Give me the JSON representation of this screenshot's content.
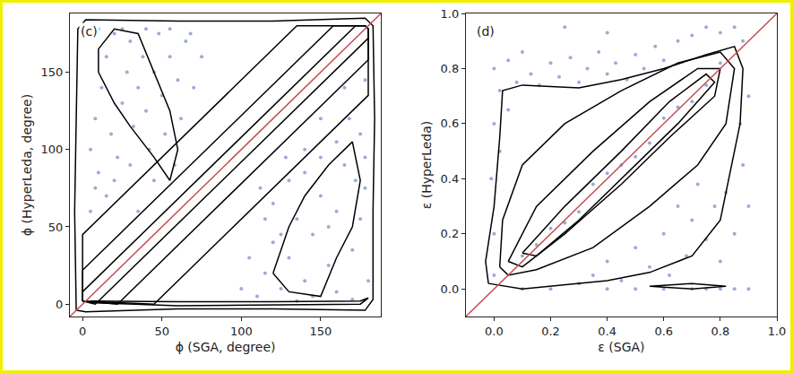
{
  "chart_data": [
    {
      "type": "scatter",
      "annotation": "(c)",
      "x_label": "ϕ (SGA, degree)",
      "y_label": "ϕ (HyperLeda, degree)",
      "xlim": [
        -8,
        188
      ],
      "ylim": [
        -8,
        188
      ],
      "xticks": [
        0,
        50,
        100,
        150
      ],
      "yticks": [
        0,
        50,
        100,
        150
      ],
      "grid": false,
      "series": [
        {
          "type": "scatter",
          "color": "#7890c8",
          "marker": "circle",
          "x": [
            5,
            8,
            10,
            12,
            15,
            18,
            20,
            22,
            25,
            28,
            30,
            32,
            35,
            38,
            40,
            42,
            45,
            48,
            50,
            52,
            55,
            58,
            60,
            62,
            65,
            3,
            10,
            25,
            40,
            55,
            5,
            8,
            15,
            20,
            30,
            70,
            75,
            68,
            45,
            35,
            110,
            115,
            120,
            125,
            130,
            135,
            140,
            145,
            150,
            155,
            160,
            165,
            170,
            175,
            178,
            180,
            120,
            130,
            140,
            150,
            160,
            168,
            175,
            178,
            145,
            160,
            100,
            105,
            115,
            125,
            135,
            170,
            150,
            165,
            178,
            140,
            155,
            112,
            128,
            172
          ],
          "y": [
            100,
            120,
            85,
            140,
            160,
            110,
            175,
            95,
            130,
            150,
            170,
            115,
            140,
            160,
            125,
            100,
            150,
            175,
            135,
            110,
            160,
            90,
            145,
            120,
            170,
            178,
            178,
            178,
            178,
            178,
            60,
            75,
            70,
            80,
            90,
            140,
            160,
            175,
            80,
            60,
            5,
            20,
            40,
            10,
            30,
            55,
            15,
            45,
            70,
            25,
            60,
            90,
            35,
            110,
            75,
            15,
            65,
            80,
            100,
            95,
            105,
            120,
            55,
            95,
            5,
            8,
            10,
            30,
            55,
            45,
            2,
            3,
            120,
            140,
            145,
            85,
            50,
            75,
            95,
            80
          ]
        },
        {
          "type": "line",
          "color": "#000000",
          "line_style": "solid",
          "x": [
            -4,
            -5,
            -4,
            -3,
            2,
            60,
            120,
            178,
            183,
            184,
            183,
            183,
            178,
            120,
            60,
            2,
            -4,
            null,
            5,
            60,
            120,
            175,
            180,
            175,
            60,
            5,
            null,
            0,
            0,
            135,
            178,
            180,
            180,
            45,
            0,
            null,
            0,
            0,
            158,
            178,
            180,
            180,
            22,
            0,
            null,
            0,
            0,
            172,
            178,
            180,
            180,
            8,
            0,
            null,
            10,
            20,
            30,
            45,
            55,
            60,
            55,
            45,
            35,
            20,
            10,
            10,
            null,
            120,
            130,
            140,
            155,
            170,
            175,
            170,
            160,
            150,
            130,
            120
          ],
          "y": [
            -4,
            60,
            120,
            178,
            184,
            183,
            183,
            185,
            180,
            120,
            60,
            3,
            -4,
            -3,
            -3,
            -5,
            -4,
            null,
            2,
            1.5,
            1.5,
            2,
            4,
            0,
            -1,
            1,
            null,
            2,
            45,
            180,
            180,
            178,
            135,
            0,
            2,
            null,
            2,
            22,
            180,
            180,
            178,
            158,
            0,
            2,
            null,
            2,
            8,
            180,
            180,
            178,
            172,
            0,
            2,
            null,
            150,
            130,
            115,
            95,
            80,
            100,
            125,
            150,
            175,
            178,
            165,
            150,
            null,
            20,
            50,
            70,
            90,
            105,
            80,
            50,
            30,
            5,
            8,
            20
          ]
        },
        {
          "type": "line",
          "color": "#c44e52",
          "line_style": "solid",
          "x": [
            -8,
            188
          ],
          "y": [
            -8,
            188
          ]
        }
      ]
    },
    {
      "type": "scatter",
      "annotation": "(d)",
      "x_label": "ε (SGA)",
      "y_label": "ε (HyperLeda)",
      "xlim": [
        -0.1,
        1.0
      ],
      "ylim": [
        -0.1,
        1.0
      ],
      "xticks": [
        {
          "value": 0,
          "label": "0.0"
        },
        0.2,
        0.4,
        0.6,
        0.8,
        {
          "value": 1,
          "label": "1.0"
        }
      ],
      "yticks": [
        {
          "value": 0,
          "label": "0.0"
        },
        0.2,
        0.4,
        0.6,
        0.8,
        {
          "value": 1,
          "label": "1.0"
        }
      ],
      "grid": false,
      "series": [
        {
          "type": "scatter",
          "color": "#7890c8",
          "marker": "circle",
          "x": [
            0.0,
            0.02,
            0.05,
            0.08,
            0.1,
            0.13,
            0.16,
            0.2,
            0.23,
            0.27,
            0.3,
            0.33,
            0.37,
            0.4,
            0.43,
            0.47,
            0.5,
            0.53,
            0.57,
            0.6,
            0.65,
            0.7,
            0.75,
            0.8,
            0.85,
            0.88,
            0.0,
            -0.01,
            0.0,
            0.02,
            0.0,
            0.05,
            0.25,
            0.4,
            0.3,
            0.35,
            0.4,
            0.45,
            0.5,
            0.55,
            0.6,
            0.62,
            0.65,
            0.68,
            0.7,
            0.72,
            0.75,
            0.78,
            0.8,
            0.82,
            0.85,
            0.88,
            0.9,
            0.87,
            0.9,
            0.4,
            0.5,
            0.6,
            0.7,
            0.75,
            0.8,
            0.85,
            0.9,
            0.2,
            0.1,
            0.1,
            0.2,
            0.3,
            0.4,
            0.5,
            0.6,
            0.7,
            0.8,
            0.35,
            0.55,
            0.65,
            0.45,
            0.25,
            0.15,
            0.75
          ],
          "y": [
            0.8,
            0.72,
            0.83,
            0.75,
            0.86,
            0.78,
            0.74,
            0.82,
            0.77,
            0.84,
            0.75,
            0.8,
            0.86,
            0.78,
            0.82,
            0.76,
            0.85,
            0.8,
            0.88,
            0.83,
            0.9,
            0.92,
            0.95,
            0.93,
            0.95,
            0.9,
            0.6,
            0.4,
            0.2,
            0.5,
            0.05,
            0.65,
            0.95,
            0.93,
            0.02,
            0.05,
            0.1,
            0.03,
            0.15,
            0.08,
            0.2,
            0.05,
            0.3,
            0.12,
            0.25,
            0.38,
            0.18,
            0.3,
            0.1,
            0.35,
            0.2,
            0.45,
            0.3,
            0.6,
            0.7,
            0,
            0,
            0,
            0,
            0,
            0,
            0,
            0,
            0,
            0,
            0.12,
            0.22,
            0.28,
            0.42,
            0.48,
            0.62,
            0.68,
            0.82,
            0.38,
            0.53,
            0.66,
            0.45,
            0.24,
            0.16,
            0.74
          ]
        },
        {
          "type": "line",
          "color": "#000000",
          "line_style": "solid",
          "x": [
            -0.02,
            -0.03,
            0.0,
            0.02,
            0.03,
            0.1,
            0.3,
            0.45,
            0.6,
            0.75,
            0.85,
            0.88,
            0.87,
            0.83,
            0.8,
            0.7,
            0.55,
            0.4,
            0.3,
            0.1,
            -0.02,
            null,
            0.02,
            0.03,
            0.1,
            0.25,
            0.45,
            0.65,
            0.8,
            0.85,
            0.82,
            0.72,
            0.55,
            0.35,
            0.15,
            0.05,
            0.02,
            null,
            0.05,
            0.15,
            0.35,
            0.55,
            0.72,
            0.8,
            0.78,
            0.62,
            0.45,
            0.25,
            0.1,
            0.05,
            null,
            0.1,
            0.25,
            0.45,
            0.62,
            0.75,
            0.78,
            0.65,
            0.5,
            0.3,
            0.15,
            0.1,
            null,
            0.55,
            0.7,
            0.82,
            0.7,
            0.55
          ],
          "y": [
            0.02,
            0.1,
            0.3,
            0.55,
            0.72,
            0.74,
            0.73,
            0.76,
            0.8,
            0.85,
            0.88,
            0.8,
            0.6,
            0.4,
            0.25,
            0.12,
            0.06,
            0.03,
            0.02,
            0.0,
            0.02,
            null,
            0.08,
            0.25,
            0.45,
            0.6,
            0.72,
            0.82,
            0.86,
            0.8,
            0.6,
            0.45,
            0.3,
            0.15,
            0.07,
            0.05,
            0.08,
            null,
            0.1,
            0.3,
            0.5,
            0.68,
            0.8,
            0.8,
            0.7,
            0.55,
            0.38,
            0.2,
            0.08,
            0.1,
            null,
            0.13,
            0.3,
            0.5,
            0.68,
            0.78,
            0.75,
            0.6,
            0.45,
            0.25,
            0.12,
            0.13,
            null,
            0.01,
            0.02,
            0.01,
            0.0,
            0.01
          ]
        },
        {
          "type": "line",
          "color": "#c44e52",
          "line_style": "solid",
          "x": [
            -0.1,
            1.0
          ],
          "y": [
            -0.1,
            1.0
          ]
        }
      ]
    }
  ]
}
